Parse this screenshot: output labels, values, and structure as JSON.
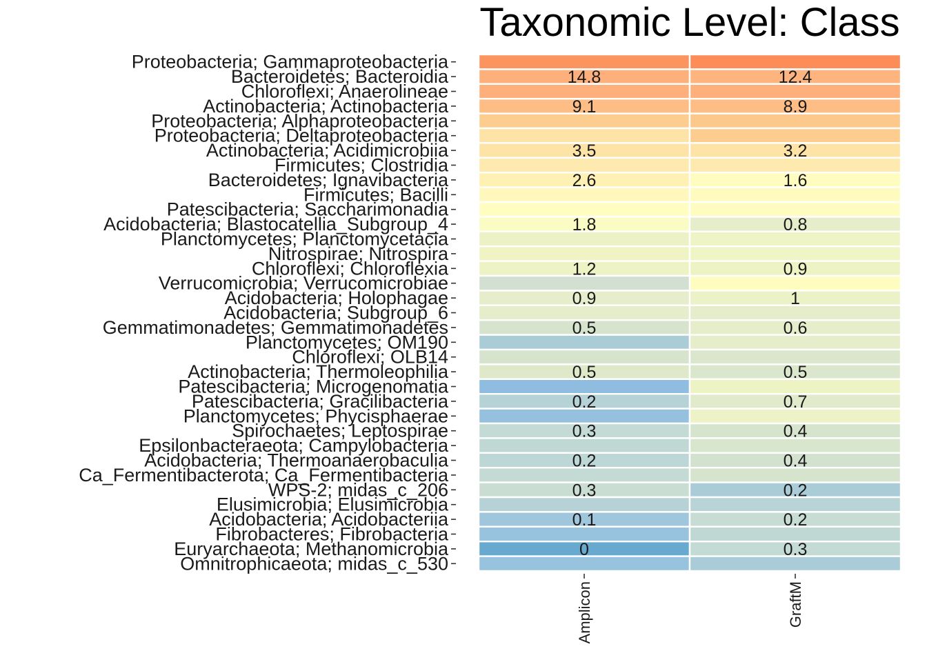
{
  "chart_data": {
    "type": "heatmap",
    "title": "Taxonomic Level: Class",
    "columns": [
      "Amplicon",
      "GraftM"
    ],
    "rows": [
      "Proteobacteria; Gammaproteobacteria",
      "Bacteroidetes; Bacteroidia",
      "Chloroflexi; Anaerolineae",
      "Actinobacteria; Actinobacteria",
      "Proteobacteria; Alphaproteobacteria",
      "Proteobacteria; Deltaproteobacteria",
      "Actinobacteria; Acidimicrobiia",
      "Firmicutes; Clostridia",
      "Bacteroidetes; Ignavibacteria",
      "Firmicutes; Bacilli",
      "Patescibacteria; Saccharimonadia",
      "Acidobacteria; Blastocatellia_Subgroup_4",
      "Planctomycetes; Planctomycetacia",
      "Nitrospirae; Nitrospira",
      "Chloroflexi; Chloroflexia",
      "Verrucomicrobia; Verrucomicrobiae",
      "Acidobacteria; Holophagae",
      "Acidobacteria; Subgroup_6",
      "Gemmatimonadetes; Gemmatimonadetes",
      "Planctomycetes; OM190",
      "Chloroflexi; OLB14",
      "Actinobacteria; Thermoleophilia",
      "Patescibacteria; Microgenomatia",
      "Patescibacteria; Gracilibacteria",
      "Planctomycetes; Phycisphaerae",
      "Spirochaetes; Leptospirae",
      "Epsilonbacteraeota; Campylobacteria",
      "Acidobacteria; Thermoanaerobaculia",
      "Ca_Fermentibacterota; Ca_Fermentibacteria",
      "WPS-2; midas_c_206",
      "Elusimicrobia; Elusimicrobia",
      "Acidobacteria; Acidobacteriia",
      "Fibrobacteres; Fibrobacteria",
      "Euryarchaeota; Methanomicrobia",
      "Omnitrophicaeota; midas_c_530"
    ],
    "cell_labels": [
      [
        "",
        ""
      ],
      [
        "14.8",
        "12.4"
      ],
      [
        "",
        ""
      ],
      [
        "9.1",
        "8.9"
      ],
      [
        "",
        ""
      ],
      [
        "",
        ""
      ],
      [
        "3.5",
        "3.2"
      ],
      [
        "",
        ""
      ],
      [
        "2.6",
        "1.6"
      ],
      [
        "",
        ""
      ],
      [
        "",
        ""
      ],
      [
        "1.8",
        "0.8"
      ],
      [
        "",
        ""
      ],
      [
        "",
        ""
      ],
      [
        "1.2",
        "0.9"
      ],
      [
        "",
        ""
      ],
      [
        "0.9",
        "1"
      ],
      [
        "",
        ""
      ],
      [
        "0.5",
        "0.6"
      ],
      [
        "",
        ""
      ],
      [
        "",
        ""
      ],
      [
        "0.5",
        "0.5"
      ],
      [
        "",
        ""
      ],
      [
        "0.2",
        "0.7"
      ],
      [
        "",
        ""
      ],
      [
        "0.3",
        "0.4"
      ],
      [
        "",
        ""
      ],
      [
        "0.2",
        "0.4"
      ],
      [
        "",
        ""
      ],
      [
        "0.3",
        "0.2"
      ],
      [
        "",
        ""
      ],
      [
        "0.1",
        "0.2"
      ],
      [
        "",
        ""
      ],
      [
        "0",
        "0.3"
      ],
      [
        "",
        ""
      ]
    ],
    "cell_colors": [
      [
        "#fc9460",
        "#fc8c58"
      ],
      [
        "#fdb07c",
        "#fdb47f"
      ],
      [
        "#fdb07c",
        "#fdb07c"
      ],
      [
        "#fdbd85",
        "#fdbd85"
      ],
      [
        "#fdcd8f",
        "#fdc88b"
      ],
      [
        "#fee3a6",
        "#fdcd8f"
      ],
      [
        "#fee3a6",
        "#fee3a6"
      ],
      [
        "#feeaaf",
        "#feeaae"
      ],
      [
        "#fff0b3",
        "#fffcc0"
      ],
      [
        "#fff7bc",
        "#fffbbf"
      ],
      [
        "#fffdbf",
        "#fffcc1"
      ],
      [
        "#fbfcc3",
        "#e6edca"
      ],
      [
        "#edf2c6",
        "#eef4c6"
      ],
      [
        "#f0f4c4",
        "#f0f5c5"
      ],
      [
        "#edf3c4",
        "#eef3c4"
      ],
      [
        "#d1e0d1",
        "#fefdbf"
      ],
      [
        "#e6edca",
        "#ecf2c7"
      ],
      [
        "#e6edca",
        "#e6edca"
      ],
      [
        "#d6e4ce",
        "#e6edca"
      ],
      [
        "#a9ccd6",
        "#e6edca"
      ],
      [
        "#d6e4ce",
        "#dbe7cd"
      ],
      [
        "#dfe9ca",
        "#dbe7cd"
      ],
      [
        "#8fbde0",
        "#eef3c4"
      ],
      [
        "#b5d2d6",
        "#e1eacb"
      ],
      [
        "#95c1de",
        "#edf2c7"
      ],
      [
        "#c4dad4",
        "#d6e4ce"
      ],
      [
        "#c0d8d4",
        "#d8e6ce"
      ],
      [
        "#bdd7d6",
        "#d3e2cf"
      ],
      [
        "#c4dad4",
        "#d6e4ce"
      ],
      [
        "#c9ddd3",
        "#a9ccd8"
      ],
      [
        "#b7d2d7",
        "#b8d4d7"
      ],
      [
        "#9fc6dc",
        "#c6dcd4"
      ],
      [
        "#98c3de",
        "#c0d8d4"
      ],
      [
        "#67a9cf",
        "#c4dad4"
      ],
      [
        "#98c3de",
        "#a9ccd8"
      ]
    ]
  }
}
